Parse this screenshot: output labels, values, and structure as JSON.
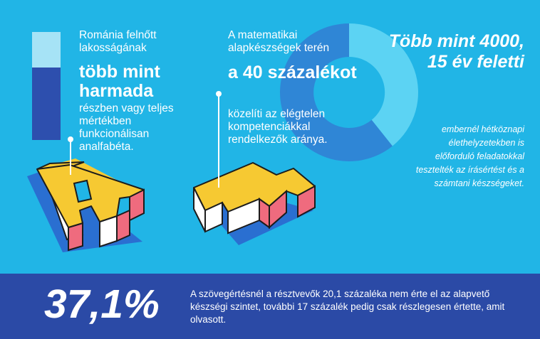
{
  "colors": {
    "background": "#21b5e6",
    "footer": "#2b4aa6",
    "letter_yellow": "#f6c932",
    "letter_red": "#ef6b7e",
    "shadow_blue": "#2a6fd1",
    "bar_light": "#a6e3f6",
    "bar_dark": "#2d4fae",
    "donut_light": "#5cd3f3",
    "donut_dark": "#2f86d6"
  },
  "block1": {
    "intro": "Románia felnőtt lakosságának",
    "highlight": "több mint harmada",
    "rest": "részben vagy teljes mértékben funkcionálisan analfabéta."
  },
  "block2": {
    "intro": "A matematikai alapkészségek terén",
    "highlight": "a 40 százalékot",
    "rest": "közelíti az elégtelen kompetenciákkal rendelkezők aránya."
  },
  "block3": {
    "highlight": "Több mint 4000, 15 év feletti",
    "rest": "embernél hétköznapi élethelyzetekben is előforduló feladatokkal tesztelték az írásértést és a számtani készségeket."
  },
  "footer": {
    "big_number": "37,1%",
    "text": "A szövegértésnél a résztvevők 20,1 százaléka nem érte el az alapvető készségi szintet, további 17 százalék pedig csak részlegesen értette, amit olvasott."
  },
  "bar_share": 0.68,
  "donut_share": 0.4,
  "icons": [
    "letter-a-3d-icon",
    "letter-m-3d-icon",
    "donut-chart-icon",
    "stacked-bar-icon"
  ]
}
